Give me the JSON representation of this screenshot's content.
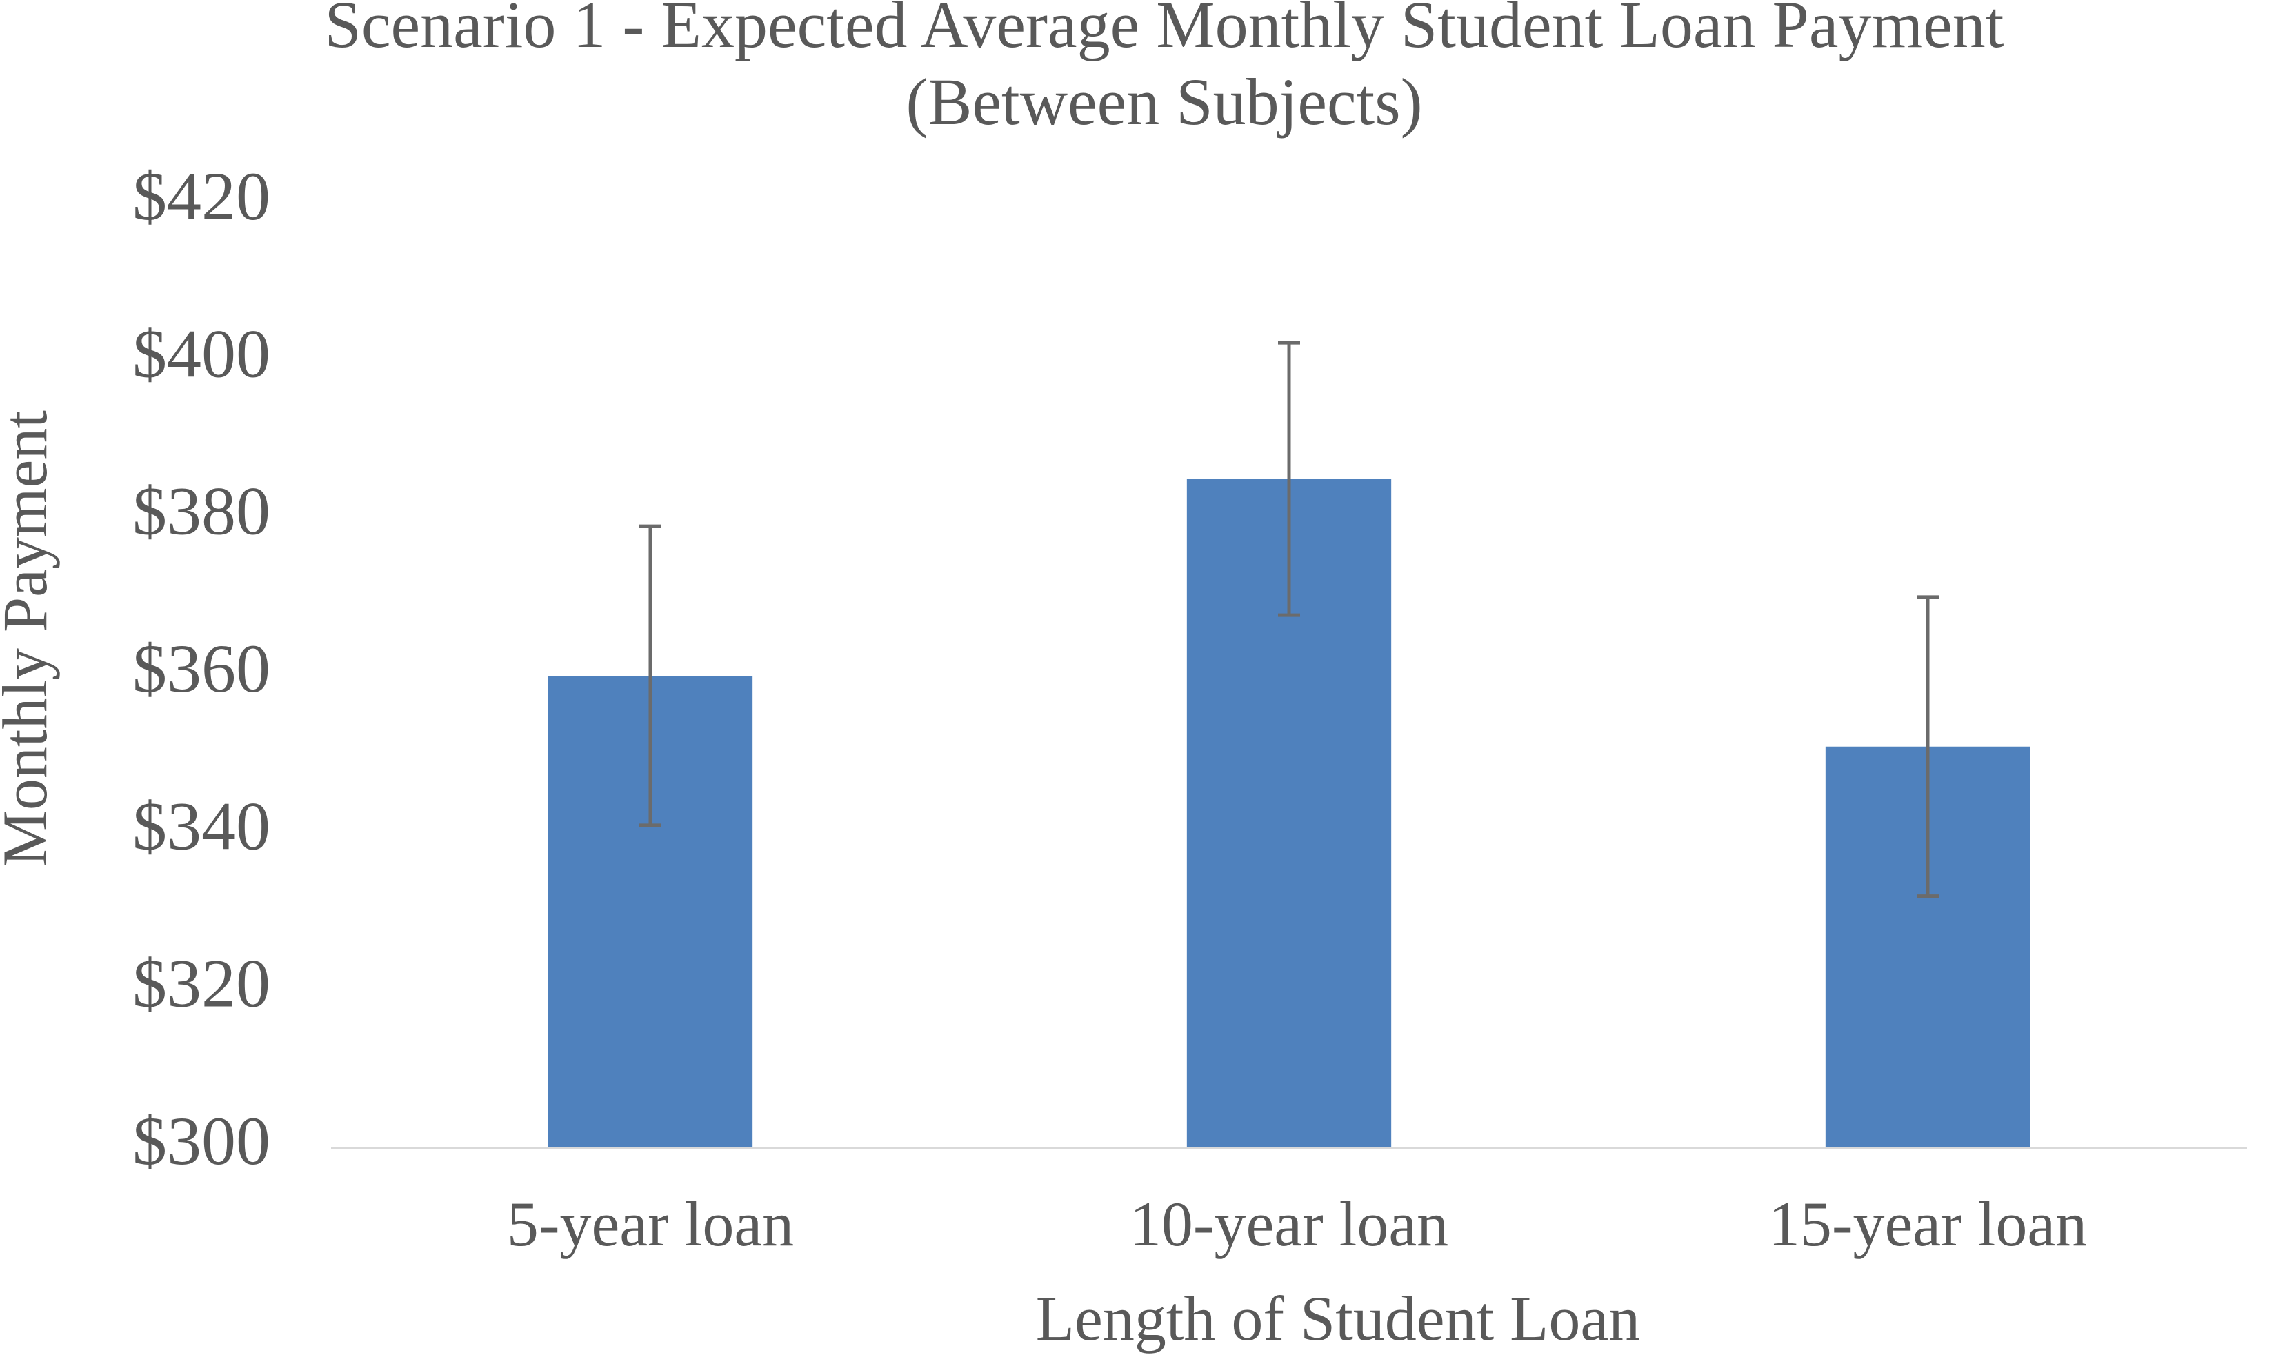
{
  "chart_data": {
    "type": "bar",
    "title": "Scenario 1 - Expected Average Monthly Student Loan Payment",
    "subtitle": "(Between Subjects)",
    "x_label": "Length of Student Loan",
    "y_label": "Monthly Payment",
    "categories": [
      "5-year loan",
      "10-year loan",
      "15-year loan"
    ],
    "values": [
      360,
      385,
      351
    ],
    "errors": [
      19,
      17.3,
      19
    ],
    "color": "#4f81bd",
    "error_color": "#6b6b6b",
    "ylim": [
      300,
      420
    ],
    "yticks": [
      {
        "value": 300,
        "label": "$300"
      },
      {
        "value": 320,
        "label": "$320"
      },
      {
        "value": 340,
        "label": "$340"
      },
      {
        "value": 360,
        "label": "$360"
      },
      {
        "value": 380,
        "label": "$380"
      },
      {
        "value": 400,
        "label": "$400"
      },
      {
        "value": 420,
        "label": "$420"
      }
    ],
    "grid": false
  }
}
